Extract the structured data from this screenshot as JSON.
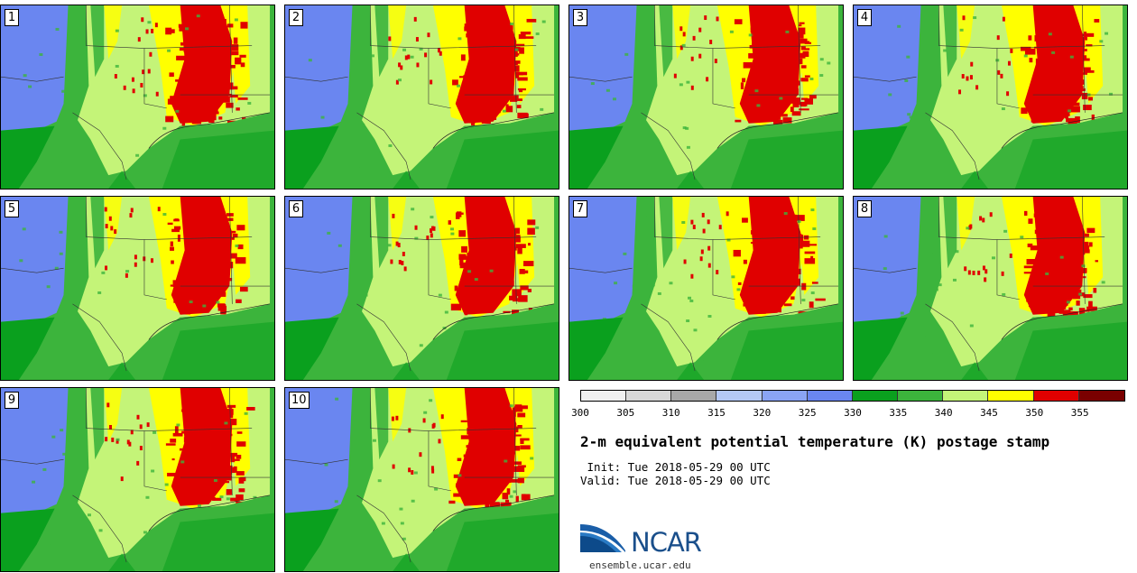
{
  "panels": [
    {
      "num": "1"
    },
    {
      "num": "2"
    },
    {
      "num": "3"
    },
    {
      "num": "4"
    },
    {
      "num": "5"
    },
    {
      "num": "6"
    },
    {
      "num": "7"
    },
    {
      "num": "8"
    },
    {
      "num": "9"
    },
    {
      "num": "10"
    }
  ],
  "colorbar": {
    "colors": [
      "#f0f0f0",
      "#d8d8d8",
      "#a8a8a8",
      "#b4c8f4",
      "#8aa4f4",
      "#6a86f0",
      "#0aa01e",
      "#3cb43c",
      "#c4f478",
      "#ffff00",
      "#e00000",
      "#7a0000"
    ],
    "ticks": [
      "300",
      "305",
      "310",
      "315",
      "320",
      "325",
      "330",
      "335",
      "340",
      "345",
      "350",
      "355"
    ]
  },
  "title": "2-m equivalent potential temperature (K) postage stamp",
  "init": " Init: Tue 2018-05-29 00 UTC",
  "valid": "Valid: Tue 2018-05-29 00 UTC",
  "logo": {
    "text": "NCAR",
    "url": "ensemble.ucar.edu"
  },
  "colors": {
    "ocean": "#3cb43c",
    "deep_green": "#0aa01e",
    "cold": "#6a86f0",
    "warm": "#c4f478",
    "hot": "#ffff00",
    "hottest": "#e00000"
  }
}
